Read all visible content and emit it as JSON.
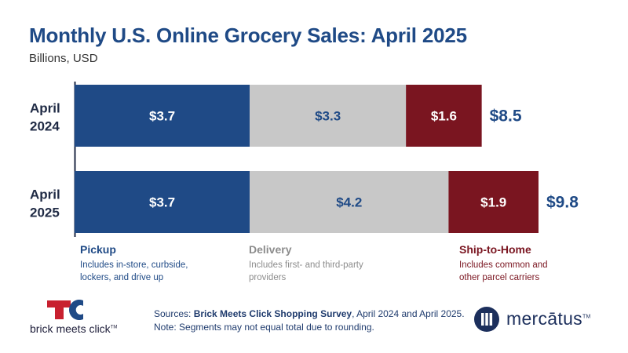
{
  "header": {
    "title": "Monthly U.S. Online Grocery Sales: April 2025",
    "subtitle": "Billions, USD"
  },
  "chart_data": {
    "type": "bar",
    "orientation": "horizontal",
    "stacked": true,
    "title": "Monthly U.S. Online Grocery Sales: April 2025",
    "subtitle": "Billions, USD",
    "categories": [
      {
        "line1": "April",
        "line2": "2024"
      },
      {
        "line1": "April",
        "line2": "2025"
      }
    ],
    "series": [
      {
        "name": "Pickup",
        "color": "#1f4a86",
        "label_color": "#ffffff",
        "values": [
          3.7,
          3.7
        ],
        "labels": [
          "$3.7",
          "$3.7"
        ]
      },
      {
        "name": "Delivery",
        "color": "#c8c8c8",
        "label_color": "#1f4a86",
        "values": [
          3.3,
          4.2
        ],
        "labels": [
          "$3.3",
          "$4.2"
        ]
      },
      {
        "name": "Ship-to-Home",
        "color": "#7a1520",
        "label_color": "#ffffff",
        "values": [
          1.6,
          1.9
        ],
        "labels": [
          "$1.6",
          "$1.9"
        ]
      }
    ],
    "totals": [
      8.5,
      9.8
    ],
    "total_labels": [
      "$8.5",
      "$9.8"
    ],
    "xlim": [
      0,
      9.8
    ],
    "grid": false
  },
  "legend": {
    "pickup": {
      "heading": "Pickup",
      "description": "Includes in-store, curbside, lockers, and drive up"
    },
    "delivery": {
      "heading": "Delivery",
      "description": "Includes first- and third-party providers"
    },
    "ship": {
      "heading": "Ship-to-Home",
      "description": "Includes common and other parcel carriers"
    }
  },
  "footer": {
    "sources_prefix": "Sources: ",
    "sources_bold": "Brick Meets Click Shopping Survey",
    "sources_suffix": ", April 2024 and April 2025.",
    "note": "Note: Segments may not equal total due to rounding."
  },
  "logos": {
    "left_wordmark": "brick meets click",
    "left_tm": "TM",
    "right_wordmark": "mercātus",
    "right_tm": "TM"
  },
  "colors": {
    "title": "#1f4a86",
    "pickup": "#1f4a86",
    "delivery": "#c8c8c8",
    "ship": "#7a1520"
  }
}
